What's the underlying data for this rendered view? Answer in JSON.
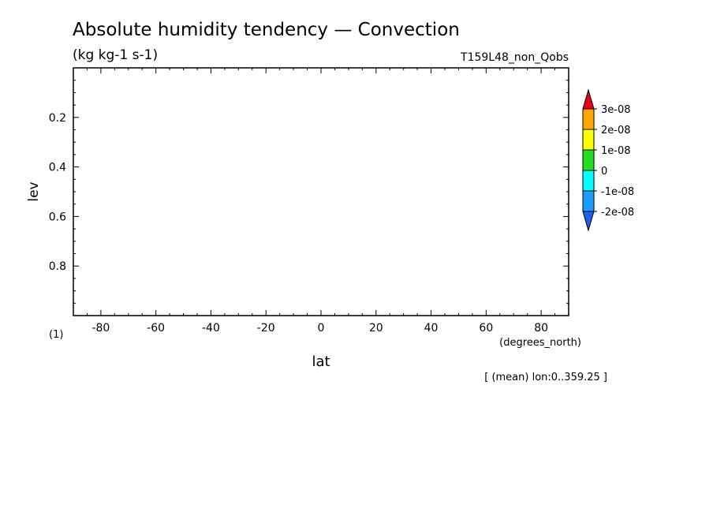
{
  "chart_data": {
    "type": "heatmap",
    "title": "Absolute humidity tendency — Convection",
    "units": "(kg kg-1 s-1)",
    "run_label": "T159L48_non_Qobs",
    "xlabel": "lat",
    "x_units": "(degrees_north)",
    "ylabel": "lev",
    "y_units": "(1)",
    "xlim": [
      -90,
      90
    ],
    "ylim": [
      0,
      1
    ],
    "y_inverted": true,
    "x_ticks": [
      -80,
      -60,
      -40,
      -20,
      0,
      20,
      40,
      60,
      80
    ],
    "y_ticks": [
      0.2,
      0.4,
      0.6,
      0.8
    ],
    "y_tick_labels": [
      "0.2",
      "0.4",
      "0.6",
      "0.8"
    ],
    "footnote": "[ (mean) lon:0..359.25 ]",
    "colorbar": {
      "levels": [
        "3e-08",
        "2e-08",
        "1e-08",
        "0",
        "-1e-08",
        "-2e-08"
      ],
      "over_color": "#e8001a",
      "under_color": "#1e5ff0",
      "bin_colors": [
        "#ffa500",
        "#ffff00",
        "#22dd22",
        "#00ffff",
        "#1e9bff"
      ]
    },
    "values": []
  }
}
